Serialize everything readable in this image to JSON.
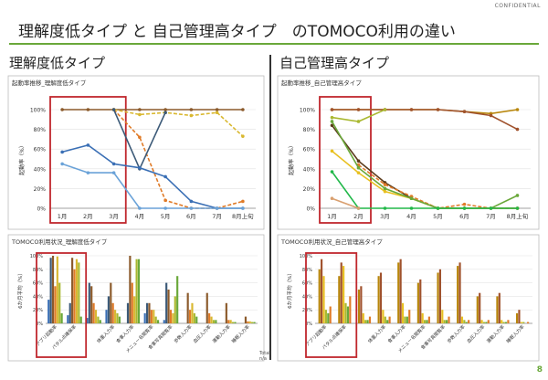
{
  "confidential": "CONFIDENTIAL",
  "title": "理解度低タイプ と 自己管理高タイプ　のTOMOCO利用の違い",
  "left_header": "理解度低タイプ",
  "right_header": "自己管理高タイプ",
  "page_number": "8",
  "footer_text": [
    "Total",
    "n/a"
  ],
  "colors": {
    "accent": "#6aa83a",
    "highlight_box": "#c0272d"
  },
  "chart_data": [
    {
      "type": "line",
      "title": "起動率推移_理解度低タイプ",
      "ylabel": "起動率（%）",
      "categories": [
        "1月",
        "2月",
        "3月",
        "4月",
        "5月",
        "6月",
        "7月",
        "8月上旬"
      ],
      "yticks": [
        "0%",
        "20%",
        "40%",
        "60%",
        "80%",
        "100%"
      ],
      "ylim": [
        0,
        100
      ],
      "highlight_categories": [
        "1月",
        "2月",
        "3月"
      ],
      "series": [
        {
          "color": "#8b5a2b",
          "values": [
            100,
            100,
            100,
            100,
            100,
            100,
            100,
            100
          ]
        },
        {
          "color": "#e07b28",
          "dashed": true,
          "values": [
            null,
            null,
            100,
            72,
            8,
            0,
            0,
            7
          ]
        },
        {
          "color": "#d9b830",
          "dashed": true,
          "values": [
            null,
            null,
            100,
            95,
            97,
            94,
            97,
            73
          ]
        },
        {
          "color": "#3c5a78",
          "values": [
            null,
            null,
            100,
            40,
            97,
            null,
            null,
            null
          ]
        },
        {
          "color": "#3a6fb5",
          "values": [
            57,
            64,
            45,
            41,
            32,
            7,
            0,
            0
          ]
        },
        {
          "color": "#6aa2d8",
          "values": [
            45,
            36,
            36,
            0,
            0,
            0,
            0,
            0
          ]
        }
      ]
    },
    {
      "type": "line",
      "title": "起動率推移_自己管理高タイプ",
      "ylabel": "起動率（%）",
      "categories": [
        "1月",
        "2月",
        "3月",
        "4月",
        "5月",
        "6月",
        "7月",
        "8月上旬"
      ],
      "yticks": [
        "0%",
        "20%",
        "40%",
        "60%",
        "80%",
        "100%"
      ],
      "ylim": [
        0,
        100
      ],
      "highlight_categories": [
        "1月",
        "2月"
      ],
      "series": [
        {
          "color": "#b8860b",
          "values": [
            100,
            100,
            100,
            100,
            100,
            98,
            96,
            100
          ]
        },
        {
          "color": "#a0522d",
          "values": [
            100,
            100,
            100,
            100,
            100,
            98,
            94,
            80
          ]
        },
        {
          "color": "#a9b830",
          "values": [
            92,
            88,
            100,
            null,
            null,
            null,
            null,
            null
          ]
        },
        {
          "color": "#5a3a1a",
          "values": [
            84,
            48,
            26,
            10,
            0,
            0,
            0,
            0
          ]
        },
        {
          "color": "#e8c020",
          "values": [
            58,
            36,
            17,
            10,
            0,
            0,
            0,
            0
          ]
        },
        {
          "color": "#e07b28",
          "dashed": true,
          "values": [
            null,
            44,
            24,
            12,
            0,
            4,
            0,
            0
          ]
        },
        {
          "color": "#6aa83a",
          "values": [
            88,
            41,
            20,
            10,
            0,
            0,
            0,
            13
          ]
        },
        {
          "color": "#22b84a",
          "values": [
            37,
            0,
            0,
            0,
            0,
            0,
            0,
            0
          ]
        },
        {
          "color": "#d9a070",
          "values": [
            10,
            0,
            null,
            null,
            null,
            null,
            null,
            null
          ]
        }
      ]
    },
    {
      "type": "bar",
      "title": "TOMOCO利用状況_理解度低タイプ",
      "ylabel": "6か月平均（%）",
      "yticks": [
        "0%",
        "20%",
        "40%",
        "60%",
        "80%",
        "100%"
      ],
      "ylim": [
        0,
        100
      ],
      "categories": [
        "アプリ起動率",
        "バタル点確保率",
        "",
        "体重入力率",
        "食事入力率",
        "メニュー名閲覧率",
        "食事写真閲覧率",
        "歩数入力率",
        "血圧入力率",
        "運動入力率",
        "睡眠入力率"
      ],
      "highlight_categories": [
        "アプリ起動率",
        "バタル点確保率"
      ],
      "series": [
        {
          "color": "#3a6fb5",
          "values": [
            35,
            12,
            8,
            20,
            0,
            15,
            5,
            0,
            0,
            0,
            0
          ]
        },
        {
          "color": "#3c5a78",
          "values": [
            97,
            30,
            60,
            40,
            30,
            30,
            60,
            0,
            0,
            0,
            0
          ]
        },
        {
          "color": "#8b5a2b",
          "values": [
            100,
            97,
            55,
            60,
            100,
            30,
            50,
            45,
            45,
            30,
            10
          ]
        },
        {
          "color": "#e07b28",
          "values": [
            55,
            80,
            30,
            30,
            60,
            20,
            20,
            20,
            15,
            5,
            3
          ]
        },
        {
          "color": "#d9b830",
          "values": [
            99,
            95,
            20,
            20,
            40,
            20,
            15,
            30,
            10,
            5,
            3
          ]
        },
        {
          "color": "#a9b830",
          "values": [
            60,
            90,
            10,
            15,
            95,
            10,
            40,
            15,
            5,
            2,
            2
          ]
        },
        {
          "color": "#6aa83a",
          "values": [
            15,
            10,
            5,
            10,
            95,
            5,
            70,
            10,
            5,
            2,
            2
          ]
        }
      ]
    },
    {
      "type": "bar",
      "title": "TOMOCO利用状況_自己管理高タイプ",
      "ylabel": "6か月平均（%）",
      "yticks": [
        "0%",
        "20%",
        "40%",
        "60%",
        "80%",
        "100%"
      ],
      "ylim": [
        0,
        100
      ],
      "categories": [
        "アプリ起動率",
        "バタル点確保率",
        "",
        "体重入力率",
        "食事入力率",
        "メニュー名閲覧率",
        "食事写真閲覧率",
        "歩数入力率",
        "血圧入力率",
        "運動入力率",
        "睡眠入力率"
      ],
      "highlight_categories": [
        "アプリ起動率",
        "バタル点確保率"
      ],
      "series": [
        {
          "color": "#b8860b",
          "values": [
            80,
            70,
            50,
            70,
            90,
            60,
            75,
            85,
            40,
            40,
            15
          ]
        },
        {
          "color": "#a0522d",
          "values": [
            95,
            90,
            55,
            75,
            95,
            65,
            80,
            90,
            45,
            45,
            20
          ]
        },
        {
          "color": "#e8c020",
          "values": [
            70,
            85,
            15,
            20,
            30,
            15,
            20,
            10,
            5,
            5,
            2
          ]
        },
        {
          "color": "#a9b830",
          "values": [
            20,
            30,
            5,
            10,
            10,
            5,
            5,
            5,
            2,
            2,
            2
          ]
        },
        {
          "color": "#6aa83a",
          "values": [
            15,
            25,
            5,
            5,
            10,
            5,
            5,
            2,
            2,
            2,
            0
          ]
        },
        {
          "color": "#e07b28",
          "values": [
            25,
            40,
            10,
            10,
            20,
            10,
            10,
            5,
            5,
            5,
            2
          ]
        }
      ]
    }
  ]
}
